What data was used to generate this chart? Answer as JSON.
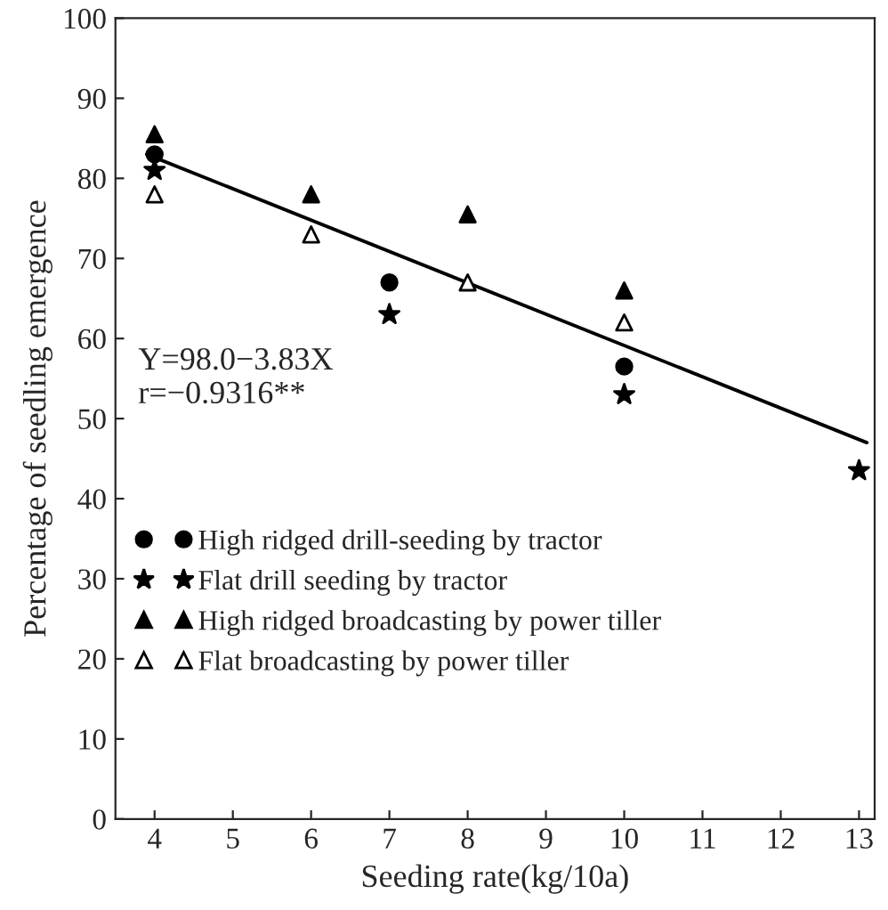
{
  "chart_data": {
    "type": "scatter",
    "xlabel": "Seeding rate(kg/10a)",
    "ylabel": "Percentage of seedling emergence",
    "xlim": [
      3.5,
      13.2
    ],
    "xticks": [
      4,
      5,
      6,
      7,
      8,
      9,
      10,
      11,
      12,
      13
    ],
    "ylim": [
      0,
      100
    ],
    "yticks": [
      0,
      10,
      20,
      30,
      40,
      50,
      60,
      70,
      80,
      90,
      100
    ],
    "grid": false,
    "legend": "left",
    "annotations": [
      "Y=98.0−3.83X\nr=−0.9316**"
    ],
    "series": [
      {
        "name": "High ridged drill-seeding by tractor",
        "color": "#000000",
        "marker": "circle",
        "x": [
          4,
          7,
          10
        ],
        "values": [
          83,
          67,
          56.5
        ]
      },
      {
        "name": "Flat drill seeding by tractor",
        "color": "#000000",
        "marker": "star",
        "x": [
          4,
          7,
          10,
          13
        ],
        "values": [
          81,
          63,
          53,
          43.5
        ]
      },
      {
        "name": "High ridged broadcasting by power tiller",
        "color": "#000000",
        "marker": "triangle",
        "x": [
          4,
          6,
          8,
          10
        ],
        "values": [
          85.5,
          78,
          75.5,
          66
        ]
      },
      {
        "name": "Flat broadcasting by power tiller",
        "color": "#ffffff",
        "marker": "triangle",
        "x": [
          4,
          6,
          8,
          10
        ],
        "values": [
          78,
          73,
          67,
          62
        ]
      },
      {
        "type": "line",
        "color": "#000000",
        "x": [
          3.9,
          13.1
        ],
        "values": [
          83,
          47
        ]
      }
    ]
  }
}
